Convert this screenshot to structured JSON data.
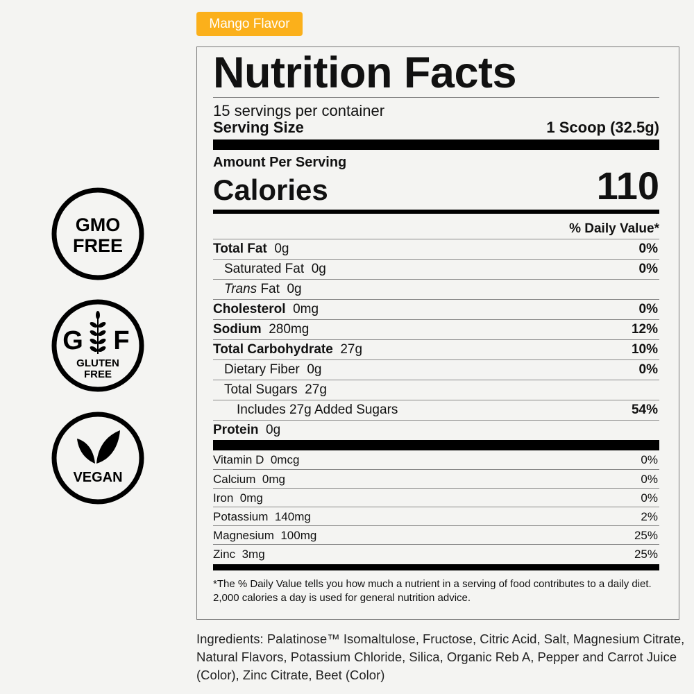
{
  "flavor_badge": "Mango Flavor",
  "badges": [
    {
      "name": "gmo-free",
      "lines": [
        "GMO",
        "FREE"
      ]
    },
    {
      "name": "gluten-free",
      "letters": [
        "G",
        "F"
      ],
      "lines": [
        "GLUTEN",
        "FREE"
      ]
    },
    {
      "name": "vegan",
      "lines": [
        "VEGAN"
      ]
    }
  ],
  "label": {
    "title": "Nutrition Facts",
    "servings": "15 servings per container",
    "serving_size_label": "Serving Size",
    "serving_size_value": "1 Scoop (32.5g)",
    "amount_per_serving": "Amount Per Serving",
    "calories_label": "Calories",
    "calories_value": "110",
    "dv_header": "% Daily Value*",
    "nutrients": [
      {
        "name": "Total Fat",
        "amount": "0g",
        "dv": "0%"
      },
      {
        "name": "Saturated Fat",
        "amount": "0g",
        "dv": "0%"
      },
      {
        "name": "Trans",
        "name_rest": " Fat",
        "amount": "0g",
        "dv": ""
      },
      {
        "name": "Cholesterol",
        "amount": "0mg",
        "dv": "0%"
      },
      {
        "name": "Sodium",
        "amount": "280mg",
        "dv": "12%"
      },
      {
        "name": "Total Carbohydrate",
        "amount": "27g",
        "dv": "10%"
      },
      {
        "name": "Dietary Fiber",
        "amount": "0g",
        "dv": "0%"
      },
      {
        "name": "Total Sugars",
        "amount": "27g",
        "dv": ""
      },
      {
        "name": "Includes 27g Added Sugars",
        "amount": "",
        "dv": "54%"
      },
      {
        "name": "Protein",
        "amount": "0g",
        "dv": ""
      }
    ],
    "vitamins": [
      {
        "name": "Vitamin D",
        "amount": "0mcg",
        "dv": "0%"
      },
      {
        "name": "Calcium",
        "amount": "0mg",
        "dv": "0%"
      },
      {
        "name": "Iron",
        "amount": "0mg",
        "dv": "0%"
      },
      {
        "name": "Potassium",
        "amount": "140mg",
        "dv": "2%"
      },
      {
        "name": "Magnesium",
        "amount": "100mg",
        "dv": "25%"
      },
      {
        "name": "Zinc",
        "amount": "3mg",
        "dv": "25%"
      }
    ],
    "footnote": "*The % Daily Value tells you how much a nutrient in a serving of food contributes to a daily diet. 2,000 calories a day is used for general nutrition advice."
  },
  "ingredients": "Ingredients: Palatinose™ Isomaltulose, Fructose, Citric Acid, Salt, Magnesium Citrate, Natural Flavors, Potassium Chloride, Silica, Organic Reb A, Pepper and Carrot Juice (Color), Zinc Citrate, Beet (Color)"
}
